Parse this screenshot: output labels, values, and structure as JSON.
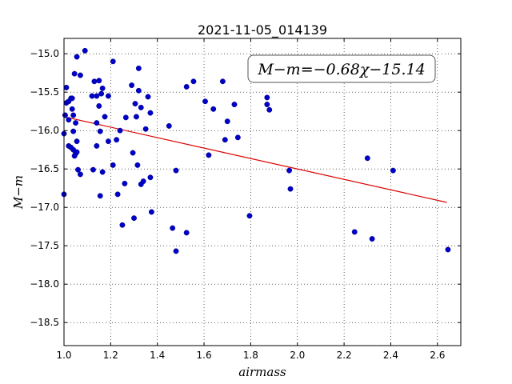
{
  "chart_data": {
    "type": "scatter",
    "title": "2021-11-05_014139",
    "xlabel": "airmass",
    "ylabel": "M−m",
    "xlim": [
      1.0,
      2.7
    ],
    "ylim": [
      -18.8,
      -14.8
    ],
    "y_inverted": true,
    "grid": true,
    "xticks": [
      1.0,
      1.2,
      1.4,
      1.6,
      1.8,
      2.0,
      2.2,
      2.4,
      2.6
    ],
    "xtick_labels": [
      "1.0",
      "1.2",
      "1.4",
      "1.6",
      "1.8",
      "2.0",
      "2.2",
      "2.4",
      "2.6"
    ],
    "yticks": [
      -15.0,
      -15.5,
      -16.0,
      -16.5,
      -17.0,
      -17.5,
      -18.0,
      -18.5
    ],
    "ytick_labels": [
      "−15.0",
      "−15.5",
      "−16.0",
      "−16.5",
      "−17.0",
      "−17.5",
      "−18.0",
      "−18.5"
    ],
    "annotation": "M−m=−0.68χ−15.14",
    "fit": {
      "slope": -0.68,
      "intercept": -15.14,
      "x_range": [
        1.0,
        2.64
      ],
      "color": "#dd0000"
    },
    "marker_color": "#0000c8",
    "points": [
      {
        "x": 1.0,
        "y": -16.83
      },
      {
        "x": 1.0,
        "y": -16.04
      },
      {
        "x": 1.005,
        "y": -15.8
      },
      {
        "x": 1.01,
        "y": -15.44
      },
      {
        "x": 1.01,
        "y": -15.64
      },
      {
        "x": 1.02,
        "y": -15.62
      },
      {
        "x": 1.02,
        "y": -15.86
      },
      {
        "x": 1.02,
        "y": -16.2
      },
      {
        "x": 1.03,
        "y": -15.58
      },
      {
        "x": 1.03,
        "y": -16.22
      },
      {
        "x": 1.035,
        "y": -15.58
      },
      {
        "x": 1.035,
        "y": -15.72
      },
      {
        "x": 1.04,
        "y": -15.8
      },
      {
        "x": 1.04,
        "y": -16.01
      },
      {
        "x": 1.04,
        "y": -16.25
      },
      {
        "x": 1.045,
        "y": -15.26
      },
      {
        "x": 1.045,
        "y": -16.33
      },
      {
        "x": 1.05,
        "y": -15.9
      },
      {
        "x": 1.05,
        "y": -16.3
      },
      {
        "x": 1.055,
        "y": -15.04
      },
      {
        "x": 1.055,
        "y": -16.14
      },
      {
        "x": 1.055,
        "y": -16.28
      },
      {
        "x": 1.06,
        "y": -16.51
      },
      {
        "x": 1.07,
        "y": -15.28
      },
      {
        "x": 1.07,
        "y": -16.57
      },
      {
        "x": 1.09,
        "y": -14.96
      },
      {
        "x": 1.12,
        "y": -15.55
      },
      {
        "x": 1.125,
        "y": -16.51
      },
      {
        "x": 1.13,
        "y": -15.36
      },
      {
        "x": 1.14,
        "y": -15.55
      },
      {
        "x": 1.14,
        "y": -15.9
      },
      {
        "x": 1.14,
        "y": -16.2
      },
      {
        "x": 1.15,
        "y": -15.35
      },
      {
        "x": 1.15,
        "y": -15.68
      },
      {
        "x": 1.155,
        "y": -16.01
      },
      {
        "x": 1.155,
        "y": -16.85
      },
      {
        "x": 1.16,
        "y": -15.52
      },
      {
        "x": 1.165,
        "y": -15.45
      },
      {
        "x": 1.165,
        "y": -16.54
      },
      {
        "x": 1.175,
        "y": -15.82
      },
      {
        "x": 1.19,
        "y": -15.55
      },
      {
        "x": 1.19,
        "y": -16.14
      },
      {
        "x": 1.21,
        "y": -15.1
      },
      {
        "x": 1.21,
        "y": -16.45
      },
      {
        "x": 1.225,
        "y": -16.12
      },
      {
        "x": 1.23,
        "y": -16.83
      },
      {
        "x": 1.24,
        "y": -16.0
      },
      {
        "x": 1.25,
        "y": -17.23
      },
      {
        "x": 1.26,
        "y": -16.69
      },
      {
        "x": 1.265,
        "y": -15.83
      },
      {
        "x": 1.29,
        "y": -15.41
      },
      {
        "x": 1.295,
        "y": -16.29
      },
      {
        "x": 1.3,
        "y": -17.14
      },
      {
        "x": 1.305,
        "y": -15.65
      },
      {
        "x": 1.31,
        "y": -15.82
      },
      {
        "x": 1.315,
        "y": -16.45
      },
      {
        "x": 1.32,
        "y": -15.48
      },
      {
        "x": 1.32,
        "y": -15.19
      },
      {
        "x": 1.33,
        "y": -15.7
      },
      {
        "x": 1.33,
        "y": -16.7
      },
      {
        "x": 1.34,
        "y": -16.66
      },
      {
        "x": 1.35,
        "y": -15.98
      },
      {
        "x": 1.36,
        "y": -15.56
      },
      {
        "x": 1.37,
        "y": -15.77
      },
      {
        "x": 1.37,
        "y": -16.61
      },
      {
        "x": 1.375,
        "y": -17.06
      },
      {
        "x": 1.45,
        "y": -15.94
      },
      {
        "x": 1.465,
        "y": -17.27
      },
      {
        "x": 1.48,
        "y": -16.52
      },
      {
        "x": 1.48,
        "y": -17.57
      },
      {
        "x": 1.525,
        "y": -15.43
      },
      {
        "x": 1.525,
        "y": -17.33
      },
      {
        "x": 1.555,
        "y": -15.36
      },
      {
        "x": 1.605,
        "y": -15.62
      },
      {
        "x": 1.62,
        "y": -16.32
      },
      {
        "x": 1.64,
        "y": -15.72
      },
      {
        "x": 1.68,
        "y": -15.36
      },
      {
        "x": 1.69,
        "y": -16.12
      },
      {
        "x": 1.7,
        "y": -15.88
      },
      {
        "x": 1.73,
        "y": -15.66
      },
      {
        "x": 1.745,
        "y": -16.09
      },
      {
        "x": 1.795,
        "y": -17.11
      },
      {
        "x": 1.87,
        "y": -15.57
      },
      {
        "x": 1.87,
        "y": -15.66
      },
      {
        "x": 1.88,
        "y": -15.73
      },
      {
        "x": 1.965,
        "y": -16.52
      },
      {
        "x": 1.97,
        "y": -16.76
      },
      {
        "x": 2.245,
        "y": -17.32
      },
      {
        "x": 2.3,
        "y": -16.36
      },
      {
        "x": 2.32,
        "y": -17.41
      },
      {
        "x": 2.41,
        "y": -16.52
      },
      {
        "x": 2.645,
        "y": -17.55
      }
    ]
  }
}
